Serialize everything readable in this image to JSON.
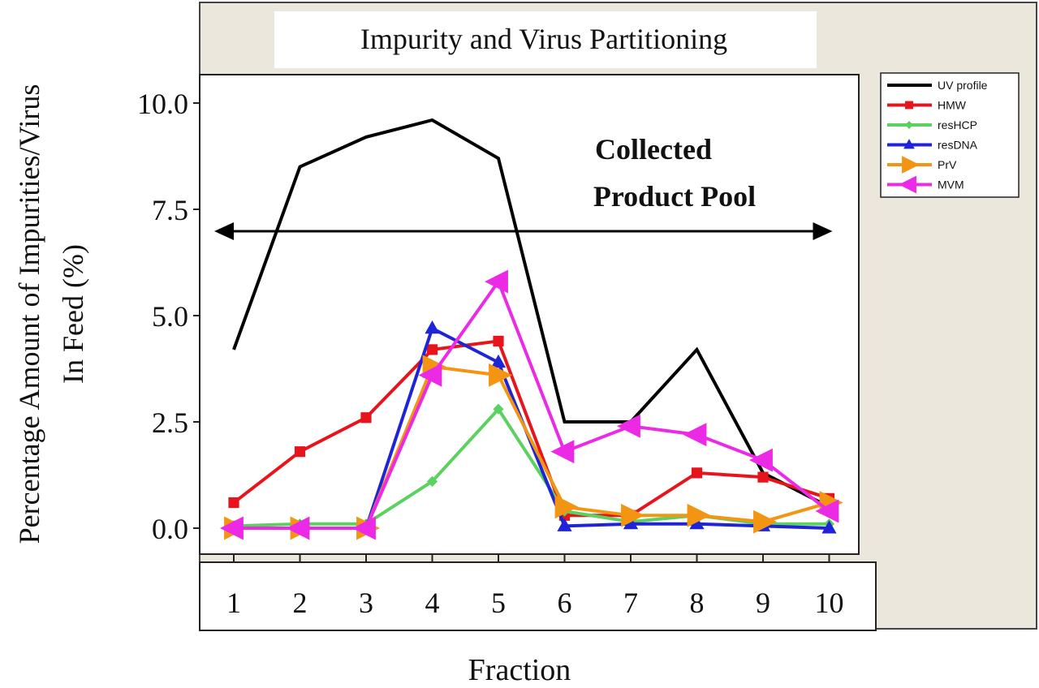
{
  "chart_data": {
    "type": "line",
    "title": "Impurity and Virus Partitioning",
    "xlabel": "Fraction",
    "ylabel_line1": "Percentage Amount of Impurities/Virus",
    "ylabel_line2": "In Feed (%)",
    "annotation_line1": "Collected",
    "annotation_line2": "Product Pool",
    "annotation_range": [
      1,
      10
    ],
    "x": [
      1,
      2,
      3,
      4,
      5,
      6,
      7,
      8,
      9,
      10
    ],
    "x_tick_labels": [
      "1",
      "2",
      "3",
      "4",
      "5",
      "6",
      "7",
      "8",
      "9",
      "10"
    ],
    "y_ticks": [
      0.0,
      2.5,
      5.0,
      7.5,
      10.0
    ],
    "y_tick_labels": [
      "0.0",
      "2.5",
      "5.0",
      "7.5",
      "10.0"
    ],
    "ylim": [
      -0.5,
      10.8
    ],
    "xlim": [
      0.5,
      10.5
    ],
    "grid": false,
    "legend_position": "right",
    "series": [
      {
        "name": "UV profile",
        "color": "#000000",
        "marker": "none",
        "values": [
          4.2,
          8.5,
          9.2,
          9.6,
          8.7,
          2.5,
          2.5,
          4.2,
          1.3,
          0.5
        ]
      },
      {
        "name": "HMW",
        "color": "#e8141c",
        "marker": "square",
        "values": [
          0.6,
          1.8,
          2.6,
          4.2,
          4.4,
          0.3,
          0.3,
          1.3,
          1.2,
          0.7
        ]
      },
      {
        "name": "resHCP",
        "color": "#5bd160",
        "marker": "diamond",
        "values": [
          0.05,
          0.1,
          0.1,
          1.1,
          2.8,
          0.4,
          0.15,
          0.3,
          0.1,
          0.1
        ]
      },
      {
        "name": "resDNA",
        "color": "#1f24d6",
        "marker": "triangle-up",
        "values": [
          0.0,
          0.0,
          0.0,
          4.7,
          3.9,
          0.05,
          0.1,
          0.1,
          0.05,
          0.0
        ]
      },
      {
        "name": "PrV",
        "color": "#f39512",
        "marker": "triangle-right",
        "values": [
          0.0,
          0.0,
          0.0,
          3.8,
          3.6,
          0.5,
          0.3,
          0.3,
          0.15,
          0.6
        ]
      },
      {
        "name": "MVM",
        "color": "#ec2ae6",
        "marker": "triangle-left",
        "values": [
          0.0,
          0.0,
          0.0,
          3.6,
          5.8,
          1.8,
          2.4,
          2.2,
          1.6,
          0.4
        ]
      }
    ]
  }
}
